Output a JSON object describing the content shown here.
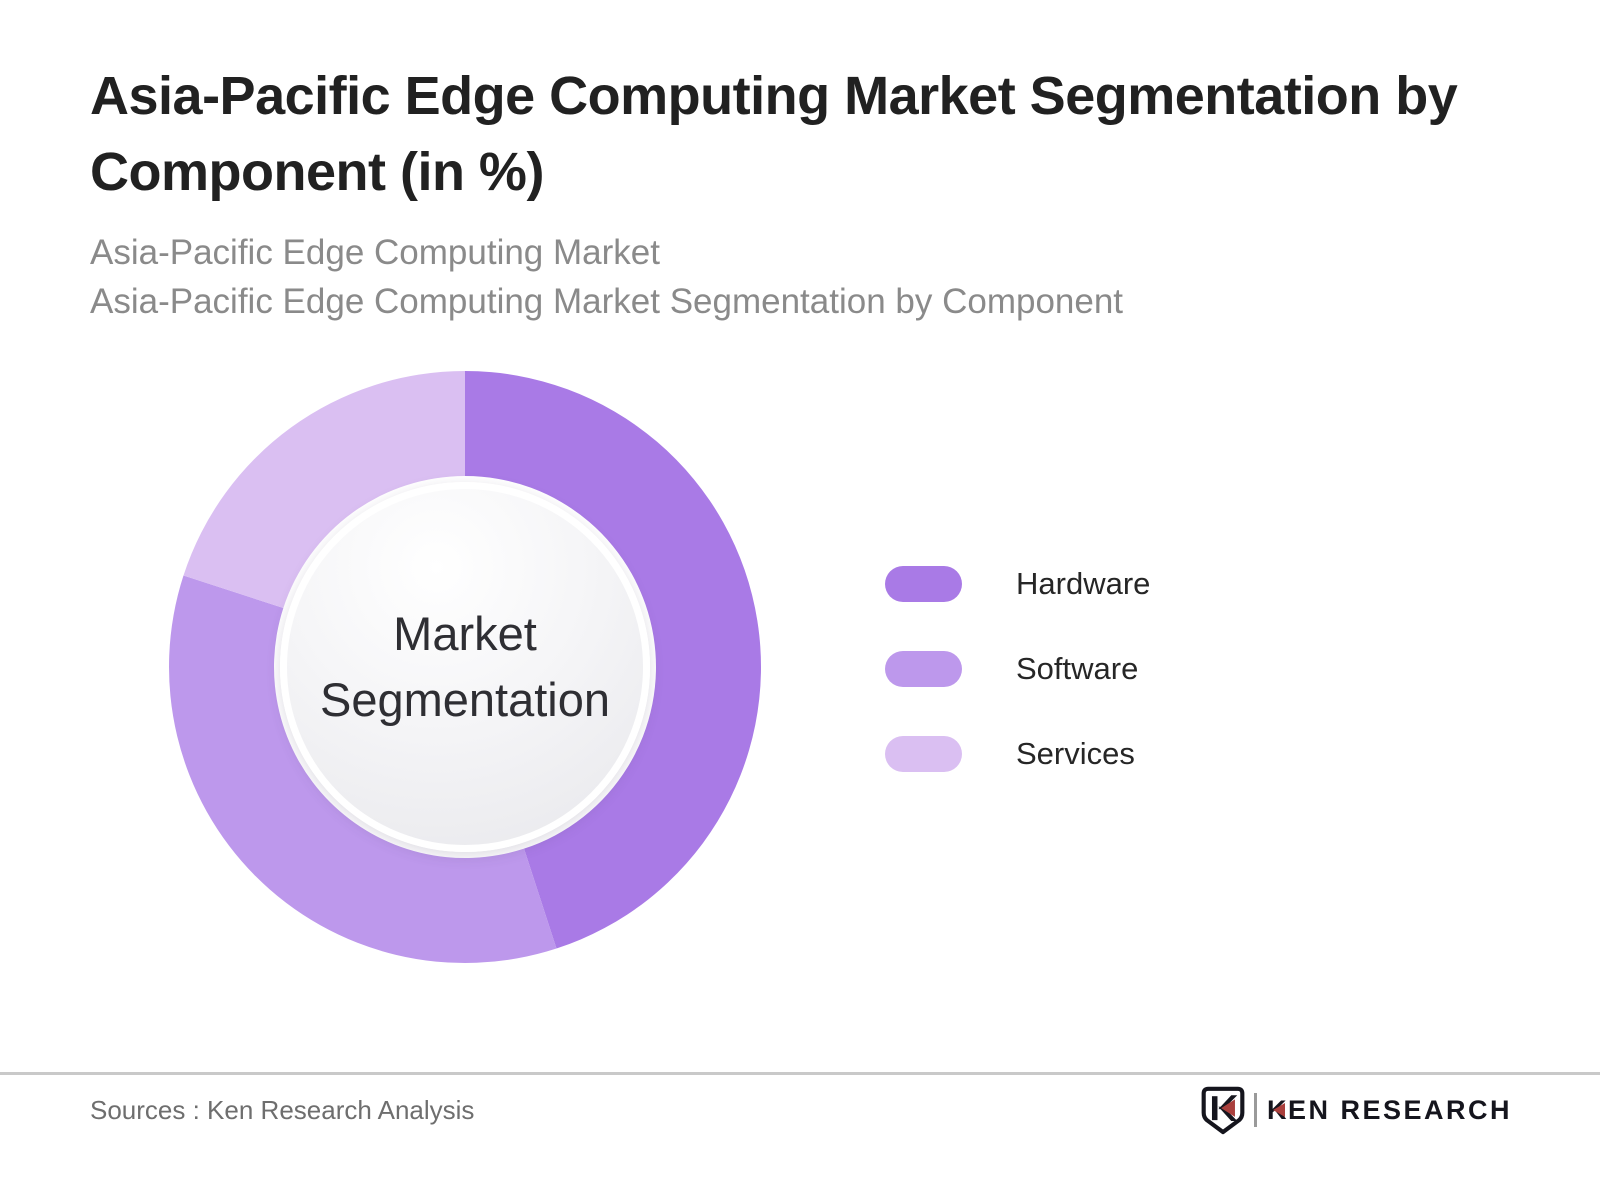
{
  "header": {
    "title_line1": "Asia-Pacific Edge Computing Market Segmentation by",
    "title_line2": "Component (in %)",
    "subtitle_line1": "Asia-Pacific Edge Computing Market",
    "subtitle_line2": "Asia-Pacific Edge Computing Market Segmentation by Component"
  },
  "chart_data": {
    "type": "pie",
    "variant": "donut",
    "title": "Asia-Pacific Edge Computing Market Segmentation by Component (in %)",
    "unit": "%",
    "center_label_line1": "Market",
    "center_label_line2": "Segmentation",
    "start_angle_deg": 0,
    "direction": "clockwise",
    "legend_position": "right",
    "values_labeled_on_chart": false,
    "segments": [
      {
        "label": "Hardware",
        "value": 45,
        "color": "#a97ae6"
      },
      {
        "label": "Software",
        "value": 35,
        "color": "#bd98ec"
      },
      {
        "label": "Services",
        "value": 20,
        "color": "#dabff2"
      }
    ],
    "center_disc_colors": [
      "#ffffff",
      "#e7e7eb"
    ]
  },
  "footer": {
    "source": "Sources : Ken Research Analysis",
    "logo": {
      "wordmark_k": "K",
      "wordmark_rest": "EN RESEARCH",
      "accent_color": "#a93f3c",
      "text_color": "#15151d"
    }
  }
}
